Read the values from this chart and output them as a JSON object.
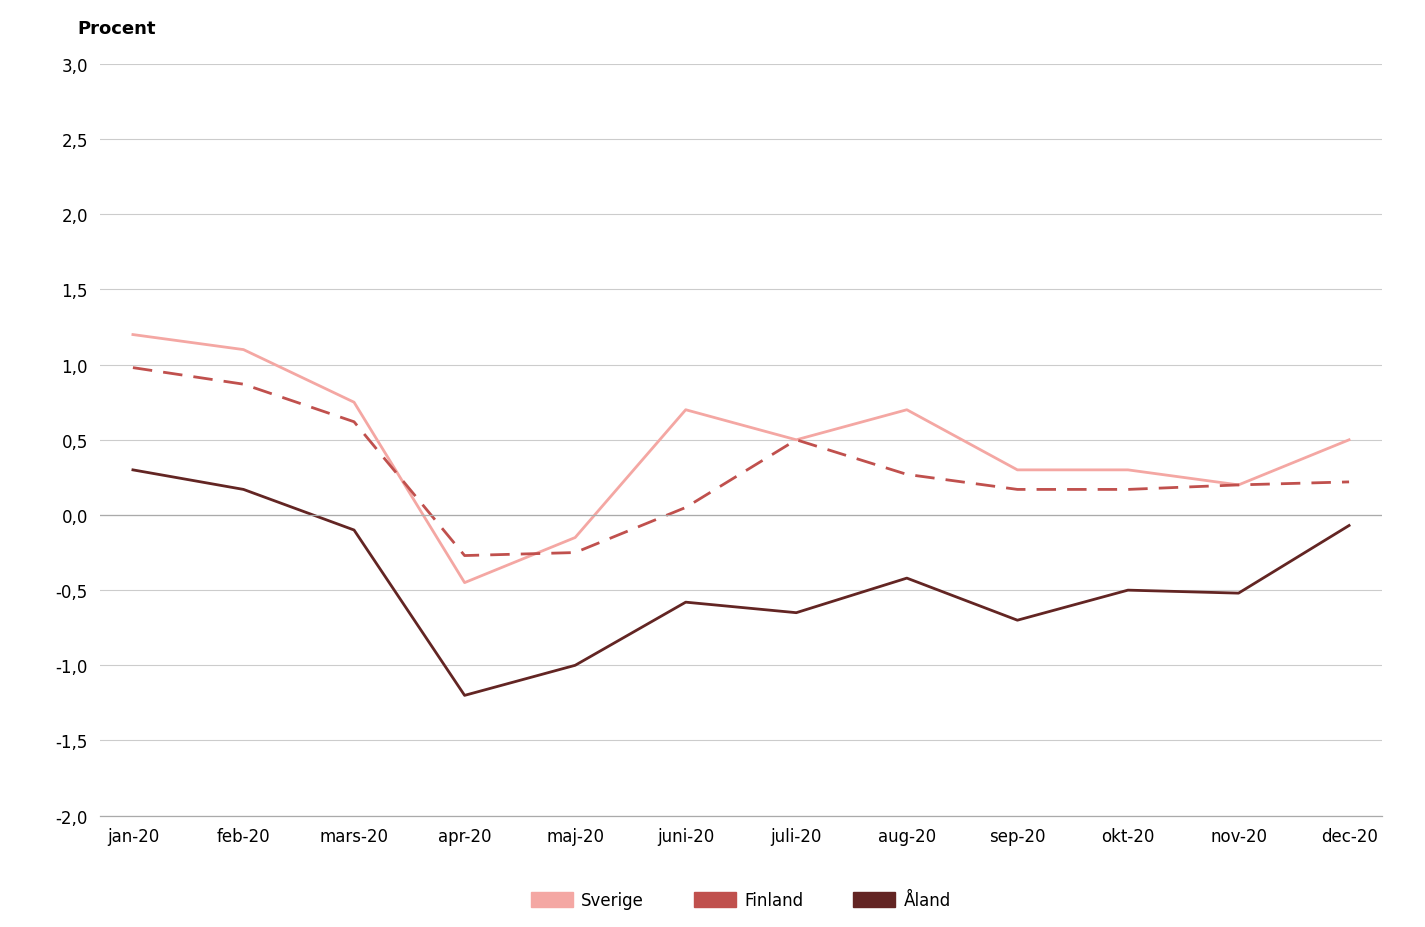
{
  "months": [
    "jan-20",
    "feb-20",
    "mars-20",
    "apr-20",
    "maj-20",
    "juni-20",
    "juli-20",
    "aug-20",
    "sep-20",
    "okt-20",
    "nov-20",
    "dec-20"
  ],
  "sverige": [
    1.2,
    1.1,
    0.75,
    -0.45,
    -0.15,
    0.7,
    0.5,
    0.7,
    0.3,
    0.3,
    0.2,
    0.5
  ],
  "finland": [
    0.98,
    0.87,
    0.62,
    -0.27,
    -0.25,
    0.05,
    0.5,
    0.27,
    0.17,
    0.17,
    0.2,
    0.22
  ],
  "aland": [
    0.3,
    0.17,
    -0.1,
    -1.2,
    -1.0,
    -0.58,
    -0.65,
    -0.42,
    -0.7,
    -0.5,
    -0.52,
    -0.07
  ],
  "sverige_color": "#f4a7a3",
  "finland_color": "#c0504d",
  "aland_color": "#632523",
  "procent_label": "Procent",
  "ylim_min": -2.0,
  "ylim_max": 3.0,
  "yticks": [
    -2.0,
    -1.5,
    -1.0,
    -0.5,
    0.0,
    0.5,
    1.0,
    1.5,
    2.0,
    2.5,
    3.0
  ],
  "legend_sverige": "Sverige",
  "legend_finland": "Finland",
  "legend_aland": "Åland",
  "background_color": "#ffffff",
  "grid_color": "#cccccc",
  "spine_color": "#aaaaaa"
}
